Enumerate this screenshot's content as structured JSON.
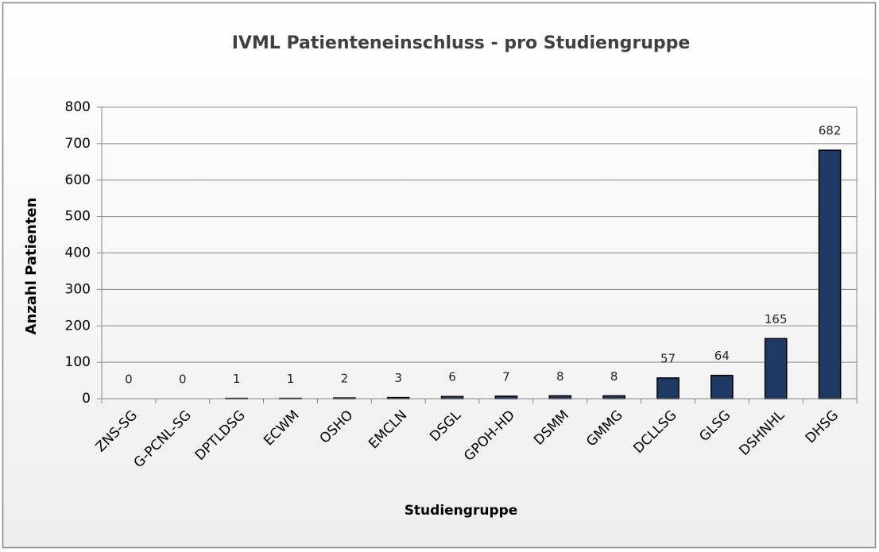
{
  "chart_data": {
    "type": "bar",
    "title": "IVML Patienteneinschluss - pro Studiengruppe",
    "x_label": "Studiengruppe",
    "y_label": "Anzahl Patienten",
    "categories": [
      "ZNS-SG",
      "G-PCNL-SG",
      "DPTLDSG",
      "ECWM",
      "OSHO",
      "EMCLN",
      "DSGL",
      "GPOH-HD",
      "DSMM",
      "GMMG",
      "DCLLSG",
      "GLSG",
      "DSHNHL",
      "DHSG"
    ],
    "values": [
      0,
      0,
      1,
      1,
      2,
      3,
      6,
      7,
      8,
      8,
      57,
      64,
      165,
      682
    ],
    "color": "#1f3864",
    "ylim": [
      0,
      800
    ],
    "yticks": [
      0,
      100,
      200,
      300,
      400,
      500,
      600,
      700,
      800
    ],
    "grid": true
  }
}
